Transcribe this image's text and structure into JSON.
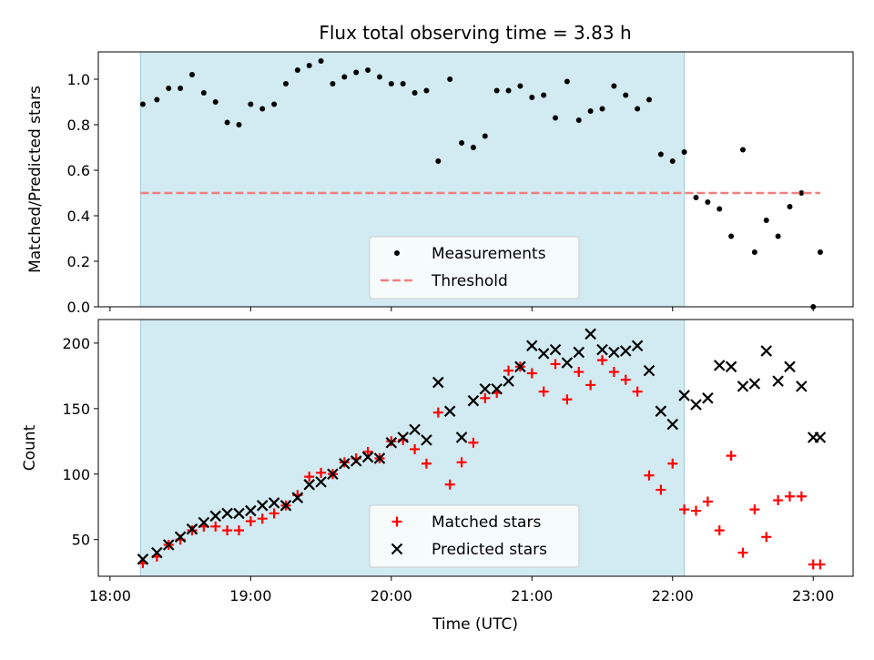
{
  "chart_data": [
    {
      "type": "scatter",
      "title": "Flux total observing time = 3.83 h",
      "xlabel": "",
      "ylabel": "Matched/Predicted stars",
      "xlim": [
        "17:55",
        "23:17"
      ],
      "ylim": [
        0,
        1.12
      ],
      "xticks": [
        "18:00",
        "19:00",
        "20:00",
        "21:00",
        "22:00",
        "23:00"
      ],
      "yticks": [
        "0.0",
        "0.2",
        "0.4",
        "0.6",
        "0.8",
        "1.0"
      ],
      "shaded_span": [
        "18:13",
        "22:05"
      ],
      "shaded_color": "#add8e6",
      "legend_position": "lower center",
      "series": [
        {
          "name": "Measurements",
          "marker": "dot",
          "color": "#000000",
          "x": [
            "18:14",
            "18:20",
            "18:25",
            "18:30",
            "18:35",
            "18:40",
            "18:45",
            "18:50",
            "18:55",
            "19:00",
            "19:05",
            "19:10",
            "19:15",
            "19:20",
            "19:25",
            "19:30",
            "19:35",
            "19:40",
            "19:45",
            "19:50",
            "19:55",
            "20:00",
            "20:05",
            "20:10",
            "20:15",
            "20:20",
            "20:25",
            "20:30",
            "20:35",
            "20:40",
            "20:45",
            "20:50",
            "20:55",
            "21:00",
            "21:05",
            "21:10",
            "21:15",
            "21:20",
            "21:25",
            "21:30",
            "21:35",
            "21:40",
            "21:45",
            "21:50",
            "21:55",
            "22:00",
            "22:05",
            "22:10",
            "22:15",
            "22:20",
            "22:25",
            "22:30",
            "22:35",
            "22:40",
            "22:45",
            "22:50",
            "22:55",
            "23:00",
            "23:03"
          ],
          "y": [
            0.89,
            0.91,
            0.96,
            0.96,
            1.02,
            0.94,
            0.9,
            0.81,
            0.8,
            0.89,
            0.87,
            0.89,
            0.98,
            1.04,
            1.06,
            1.08,
            0.98,
            1.01,
            1.03,
            1.04,
            1.01,
            0.98,
            0.98,
            0.94,
            0.95,
            0.64,
            1.0,
            0.72,
            0.7,
            0.75,
            0.95,
            0.95,
            0.97,
            0.92,
            0.93,
            0.83,
            0.99,
            0.82,
            0.86,
            0.87,
            0.97,
            0.93,
            0.87,
            0.91,
            0.67,
            0.64,
            0.68,
            0.48,
            0.46,
            0.43,
            0.31,
            0.69,
            0.24,
            0.38,
            0.31,
            0.44,
            0.5,
            0.0,
            0.24
          ]
        },
        {
          "name": "Threshold",
          "marker": "dashed-line",
          "color": "#f08080",
          "x": [
            "18:13",
            "23:03"
          ],
          "y": [
            0.5,
            0.5
          ]
        }
      ]
    },
    {
      "type": "scatter",
      "title": "",
      "xlabel": "Time (UTC)",
      "ylabel": "Count",
      "xlim": [
        "17:55",
        "23:17"
      ],
      "ylim": [
        22,
        218
      ],
      "xticks": [
        "18:00",
        "19:00",
        "20:00",
        "21:00",
        "22:00",
        "23:00"
      ],
      "yticks": [
        "50",
        "100",
        "150",
        "200"
      ],
      "shaded_span": [
        "18:13",
        "22:05"
      ],
      "shaded_color": "#add8e6",
      "legend_position": "lower center",
      "series": [
        {
          "name": "Matched stars",
          "marker": "plus",
          "color": "#ff0000",
          "x": [
            "18:14",
            "18:20",
            "18:25",
            "18:30",
            "18:35",
            "18:40",
            "18:45",
            "18:50",
            "18:55",
            "19:00",
            "19:05",
            "19:10",
            "19:15",
            "19:20",
            "19:25",
            "19:30",
            "19:35",
            "19:40",
            "19:45",
            "19:50",
            "19:55",
            "20:00",
            "20:05",
            "20:10",
            "20:15",
            "20:20",
            "20:25",
            "20:30",
            "20:35",
            "20:40",
            "20:45",
            "20:50",
            "20:55",
            "21:00",
            "21:05",
            "21:10",
            "21:15",
            "21:20",
            "21:25",
            "21:30",
            "21:35",
            "21:40",
            "21:45",
            "21:50",
            "21:55",
            "22:00",
            "22:05",
            "22:10",
            "22:15",
            "22:20",
            "22:25",
            "22:30",
            "22:35",
            "22:40",
            "22:45",
            "22:50",
            "22:55",
            "23:00",
            "23:03"
          ],
          "y": [
            32,
            37,
            46,
            50,
            57,
            60,
            60,
            57,
            57,
            64,
            66,
            70,
            76,
            84,
            98,
            101,
            100,
            109,
            112,
            117,
            112,
            125,
            126,
            119,
            108,
            147,
            92,
            109,
            124,
            158,
            162,
            179,
            182,
            177,
            163,
            184,
            157,
            178,
            168,
            187,
            178,
            172,
            163,
            99,
            88,
            108,
            73,
            72,
            79,
            57,
            114,
            40,
            73,
            52,
            80,
            83,
            83,
            31,
            31
          ]
        },
        {
          "name": "Predicted stars",
          "marker": "x",
          "color": "#000000",
          "x": [
            "18:14",
            "18:20",
            "18:25",
            "18:30",
            "18:35",
            "18:40",
            "18:45",
            "18:50",
            "18:55",
            "19:00",
            "19:05",
            "19:10",
            "19:15",
            "19:20",
            "19:25",
            "19:30",
            "19:35",
            "19:40",
            "19:45",
            "19:50",
            "19:55",
            "20:00",
            "20:05",
            "20:10",
            "20:15",
            "20:20",
            "20:25",
            "20:30",
            "20:35",
            "20:40",
            "20:45",
            "20:50",
            "20:55",
            "21:00",
            "21:05",
            "21:10",
            "21:15",
            "21:20",
            "21:25",
            "21:30",
            "21:35",
            "21:40",
            "21:45",
            "21:50",
            "21:55",
            "22:00",
            "22:05",
            "22:10",
            "22:15",
            "22:20",
            "22:25",
            "22:30",
            "22:35",
            "22:40",
            "22:45",
            "22:50",
            "22:55",
            "23:00",
            "23:03"
          ],
          "y": [
            35,
            40,
            46,
            52,
            58,
            63,
            68,
            70,
            70,
            72,
            76,
            78,
            76,
            82,
            92,
            94,
            100,
            108,
            110,
            113,
            112,
            124,
            128,
            134,
            126,
            170,
            148,
            128,
            156,
            165,
            165,
            171,
            182,
            198,
            192,
            195,
            185,
            193,
            207,
            195,
            193,
            194,
            198,
            179,
            148,
            138,
            160,
            153,
            158,
            183,
            182,
            167,
            169,
            194,
            171,
            182,
            167,
            128,
            128
          ]
        }
      ]
    }
  ]
}
